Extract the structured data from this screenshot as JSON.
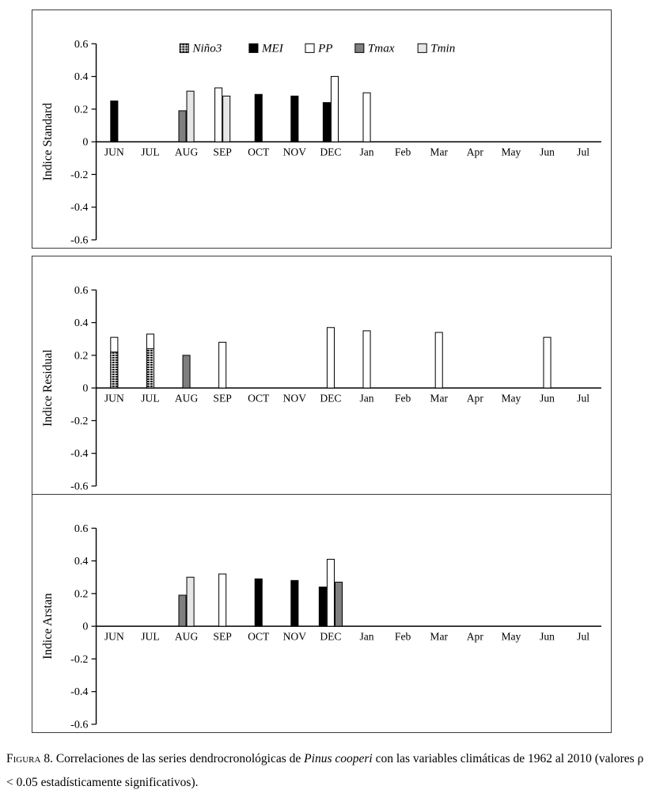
{
  "legend": [
    "Niño3",
    "MEI",
    "PP",
    "Tmax",
    "Tmin"
  ],
  "series_styles": {
    "Niño3": {
      "type": "hatch"
    },
    "MEI": {
      "fill": "#000000"
    },
    "PP": {
      "fill": "#ffffff"
    },
    "Tmax": {
      "fill": "#7f7f7f"
    },
    "Tmin": {
      "fill": "#e6e6e6"
    }
  },
  "months": [
    "JUN",
    "JUL",
    "AUG",
    "SEP",
    "OCT",
    "NOV",
    "DEC",
    "Jan",
    "Feb",
    "Mar",
    "Apr",
    "May",
    "Jun",
    "Jul"
  ],
  "chart_data": [
    {
      "type": "bar",
      "ylabel": "Indice Standard",
      "ylim": [
        -0.6,
        0.6
      ],
      "yticks": [
        "0.6",
        "0.4",
        "0.2",
        "0",
        "-0.2",
        "-0.4",
        "-0.6"
      ],
      "categories": [
        "JUN",
        "JUL",
        "AUG",
        "SEP",
        "OCT",
        "NOV",
        "DEC",
        "Jan",
        "Feb",
        "Mar",
        "Apr",
        "May",
        "Jun",
        "Jul"
      ],
      "show_legend": true,
      "legend_position": "top-inside",
      "grid": false,
      "bars": [
        {
          "month": "JUN",
          "series": "MEI",
          "value": 0.25
        },
        {
          "month": "AUG",
          "series": "Tmax",
          "value": 0.19
        },
        {
          "month": "AUG",
          "series": "Tmin",
          "value": 0.31
        },
        {
          "month": "SEP",
          "series": "PP",
          "value": 0.33
        },
        {
          "month": "SEP",
          "series": "Tmin",
          "value": 0.28
        },
        {
          "month": "OCT",
          "series": "MEI",
          "value": 0.29
        },
        {
          "month": "NOV",
          "series": "MEI",
          "value": 0.28
        },
        {
          "month": "DEC",
          "series": "MEI",
          "value": 0.24
        },
        {
          "month": "DEC",
          "series": "PP",
          "value": 0.4
        },
        {
          "month": "Jan",
          "series": "PP",
          "value": 0.3
        }
      ]
    },
    {
      "type": "bar",
      "ylabel": "Indice Residual",
      "ylim": [
        -0.6,
        0.6
      ],
      "yticks": [
        "0.6",
        "0.4",
        "0.2",
        "0",
        "-0.2",
        "-0.4",
        "-0.6"
      ],
      "categories": [
        "JUN",
        "JUL",
        "AUG",
        "SEP",
        "OCT",
        "NOV",
        "DEC",
        "Jan",
        "Feb",
        "Mar",
        "Apr",
        "May",
        "Jun",
        "Jul"
      ],
      "show_legend": false,
      "grid": false,
      "bars": [
        {
          "month": "JUN",
          "series": "PP",
          "value": 0.31
        },
        {
          "month": "JUN",
          "series": "Niño3",
          "value": 0.22,
          "overlay": true
        },
        {
          "month": "JUL",
          "series": "PP",
          "value": 0.33
        },
        {
          "month": "JUL",
          "series": "Niño3",
          "value": 0.24,
          "overlay": true
        },
        {
          "month": "AUG",
          "series": "Tmax",
          "value": 0.2
        },
        {
          "month": "SEP",
          "series": "PP",
          "value": 0.28
        },
        {
          "month": "DEC",
          "series": "PP",
          "value": 0.37
        },
        {
          "month": "Jan",
          "series": "PP",
          "value": 0.35
        },
        {
          "month": "Mar",
          "series": "PP",
          "value": 0.34
        },
        {
          "month": "Jun",
          "series": "PP",
          "value": 0.31
        }
      ]
    },
    {
      "type": "bar",
      "ylabel": "Indice Arstan",
      "ylim": [
        -0.6,
        0.6
      ],
      "yticks": [
        "0.6",
        "0.4",
        "0.2",
        "0",
        "-0.2",
        "-0.4",
        "-0.6"
      ],
      "categories": [
        "JUN",
        "JUL",
        "AUG",
        "SEP",
        "OCT",
        "NOV",
        "DEC",
        "Jan",
        "Feb",
        "Mar",
        "Apr",
        "May",
        "Jun",
        "Jul"
      ],
      "show_legend": false,
      "grid": false,
      "bars": [
        {
          "month": "AUG",
          "series": "Tmax",
          "value": 0.19
        },
        {
          "month": "AUG",
          "series": "Tmin",
          "value": 0.3
        },
        {
          "month": "SEP",
          "series": "PP",
          "value": 0.32
        },
        {
          "month": "OCT",
          "series": "MEI",
          "value": 0.29
        },
        {
          "month": "NOV",
          "series": "MEI",
          "value": 0.28
        },
        {
          "month": "DEC",
          "series": "MEI",
          "value": 0.24
        },
        {
          "month": "DEC",
          "series": "PP",
          "value": 0.41
        },
        {
          "month": "DEC",
          "series": "Tmax",
          "value": 0.27
        }
      ]
    }
  ],
  "caption": {
    "label": "Figura 8.",
    "before_italic": " Correlaciones de las series dendrocronológicas de ",
    "italic": "Pinus cooperi",
    "after_italic": " con las variables climáticas de 1962 al 2010 (valores ρ < 0.05 estadísticamente significativos)."
  }
}
